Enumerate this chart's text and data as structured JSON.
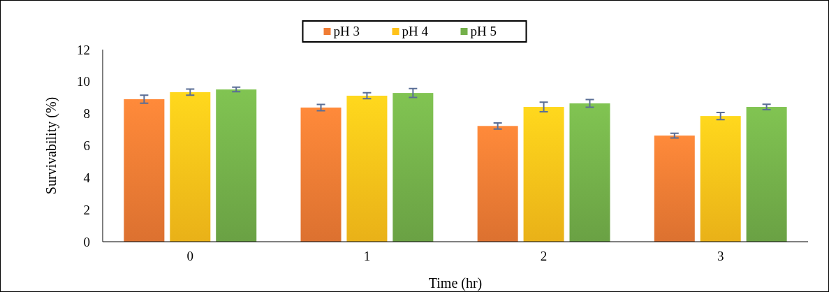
{
  "chart_data": {
    "type": "bar",
    "xlabel": "Time (hr)",
    "ylabel": "Survivability (%)",
    "categories": [
      "0",
      "1",
      "2",
      "3"
    ],
    "series": [
      {
        "name": "pH 3",
        "color": "#f07c34",
        "values": [
          8.9,
          8.38,
          7.23,
          6.63
        ],
        "errors": [
          0.25,
          0.2,
          0.19,
          0.15
        ]
      },
      {
        "name": "pH 4",
        "color": "#ffc21a",
        "values": [
          9.34,
          9.12,
          8.42,
          7.85
        ],
        "errors": [
          0.19,
          0.19,
          0.3,
          0.22
        ]
      },
      {
        "name": "pH 5",
        "color": "#74b04a",
        "values": [
          9.51,
          9.29,
          8.64,
          8.42
        ],
        "errors": [
          0.14,
          0.28,
          0.24,
          0.17
        ]
      }
    ],
    "ylim": [
      0,
      12
    ],
    "yticks": [
      0,
      2,
      4,
      6,
      8,
      10,
      12
    ],
    "grid": false,
    "legend": "top"
  }
}
